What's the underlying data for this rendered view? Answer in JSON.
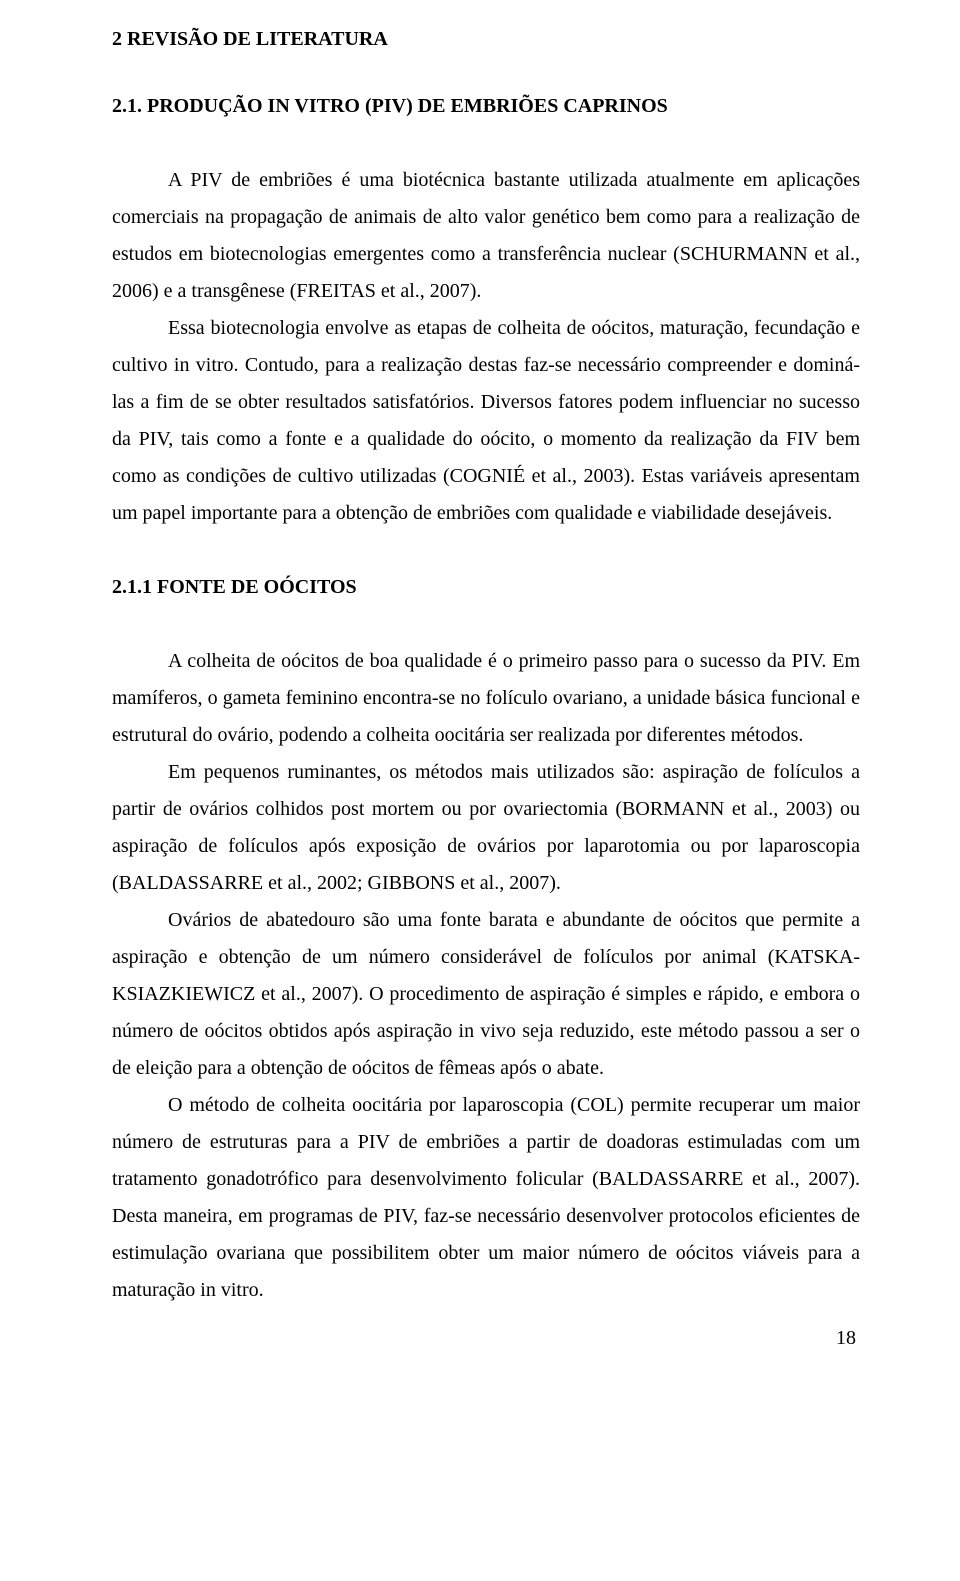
{
  "headings": {
    "h1": "2 REVISÃO DE LITERATURA",
    "h2": "2.1. PRODUÇÃO IN VITRO (PIV) DE EMBRIÕES CAPRINOS",
    "h3": "2.1.1 FONTE DE OÓCITOS"
  },
  "paragraphs": {
    "p1": "A PIV de embriões é uma biotécnica bastante utilizada atualmente em aplicações comerciais na propagação de animais de alto valor genético bem como para a realização de estudos em biotecnologias emergentes como a transferência nuclear (SCHURMANN et al., 2006) e a transgênese (FREITAS et al., 2007).",
    "p2": "Essa biotecnologia envolve as etapas de colheita de oócitos, maturação, fecundação e cultivo in vitro. Contudo, para a realização destas faz-se necessário compreender e dominá-las a fim de se obter resultados satisfatórios. Diversos fatores podem influenciar no sucesso da PIV, tais como a fonte e a qualidade do oócito, o momento da realização da FIV bem como as condições de cultivo utilizadas (COGNIÉ et al., 2003). Estas variáveis apresentam um papel importante para a obtenção de embriões com qualidade e viabilidade desejáveis.",
    "p3": "A colheita de oócitos de boa qualidade é o primeiro passo para o sucesso da PIV. Em mamíferos, o gameta feminino encontra-se no folículo ovariano, a unidade básica funcional e estrutural do ovário, podendo a colheita oocitária ser realizada por diferentes métodos.",
    "p4": "Em pequenos ruminantes, os métodos mais utilizados são: aspiração de folículos a partir de ovários colhidos post mortem ou por ovariectomia (BORMANN et al., 2003) ou aspiração de folículos após exposição de ovários por laparotomia ou por laparoscopia (BALDASSARRE et al., 2002; GIBBONS et al., 2007).",
    "p5": "Ovários de abatedouro são uma fonte barata e abundante de oócitos que permite a aspiração e obtenção de um número considerável de folículos por animal (KATSKA-KSIAZKIEWICZ et al., 2007). O procedimento de aspiração é simples e rápido, e embora o número de oócitos obtidos após aspiração in vivo seja reduzido, este método passou a ser o de eleição para a obtenção de oócitos de fêmeas após o abate.",
    "p6": "O método de colheita oocitária por laparoscopia (COL) permite recuperar um maior número de estruturas para a PIV de embriões a partir de doadoras estimuladas com um tratamento gonadotrófico para desenvolvimento folicular (BALDASSARRE et al., 2007). Desta maneira, em programas de PIV, faz-se necessário desenvolver protocolos eficientes de estimulação ovariana que possibilitem obter um maior número de oócitos viáveis para a maturação in vitro."
  },
  "page_number": "18"
}
